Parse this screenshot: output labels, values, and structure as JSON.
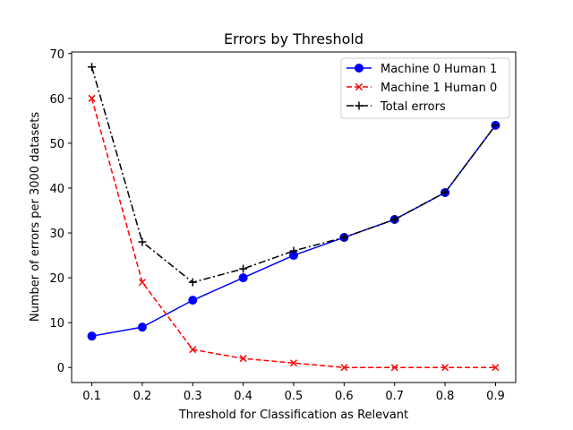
{
  "chart_data": {
    "type": "line",
    "title": "Errors by Threshold",
    "xlabel": "Threshold for Classification as Relevant",
    "ylabel": "Number of errors per 3000 datasets",
    "x": [
      0.1,
      0.2,
      0.3,
      0.4,
      0.5,
      0.6,
      0.7,
      0.8,
      0.9
    ],
    "xlim": [
      0.06,
      0.94
    ],
    "ylim": [
      -3.35,
      70.35
    ],
    "xticks": [
      "0.1",
      "0.2",
      "0.3",
      "0.4",
      "0.5",
      "0.6",
      "0.7",
      "0.8",
      "0.9"
    ],
    "yticks": [
      "0",
      "10",
      "20",
      "30",
      "40",
      "50",
      "60",
      "70"
    ],
    "grid": false,
    "legend_position": "upper-right",
    "series": [
      {
        "name": "Machine 0 Human 1",
        "values": [
          7,
          9,
          15,
          20,
          25,
          29,
          33,
          39,
          54
        ],
        "color": "#0000ff",
        "linestyle": "solid",
        "marker": "circle"
      },
      {
        "name": "Machine 1 Human 0",
        "values": [
          60,
          19,
          4,
          2,
          1,
          0,
          0,
          0,
          0
        ],
        "color": "#ff0000",
        "linestyle": "dashed",
        "marker": "x"
      },
      {
        "name": "Total errors",
        "values": [
          67,
          28,
          19,
          22,
          26,
          29,
          33,
          39,
          54
        ],
        "color": "#000000",
        "linestyle": "dashdot",
        "marker": "plus"
      }
    ]
  }
}
